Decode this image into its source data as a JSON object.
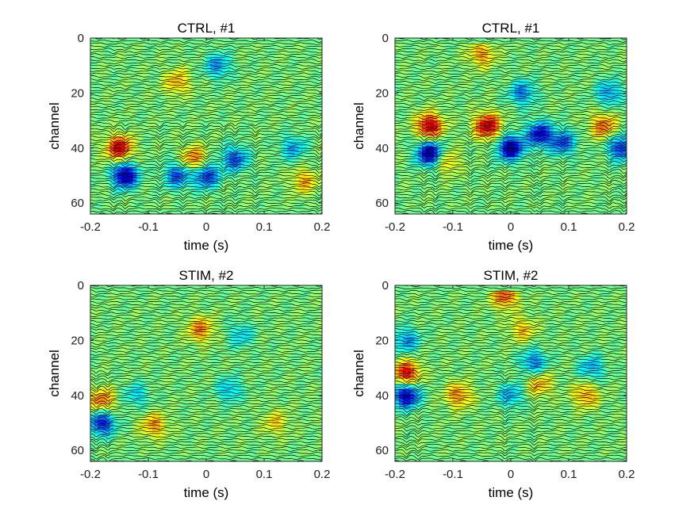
{
  "chart_data": [
    {
      "type": "heatmap",
      "title": "CTRL, #1",
      "xlabel": "time (s)",
      "ylabel": "channel",
      "xlim": [
        -0.2,
        0.2
      ],
      "ylim": [
        0,
        64
      ],
      "y_reversed": true,
      "xticks": [
        -0.2,
        -0.1,
        0,
        0.1,
        0.2
      ],
      "xtick_labels": [
        "-0.2",
        "-0.1",
        "0",
        "0.1",
        "0.2"
      ],
      "yticks": [
        0,
        20,
        40,
        60
      ],
      "ytick_labels": [
        "0",
        "20",
        "40",
        "60"
      ],
      "colormap": "jet",
      "trace_color": "#000000",
      "hotspots": [
        {
          "t": -0.15,
          "ch": 40,
          "v": 0.85
        },
        {
          "t": -0.14,
          "ch": 50,
          "v": -0.95
        },
        {
          "t": -0.02,
          "ch": 44,
          "v": 0.55
        },
        {
          "t": 0.0,
          "ch": 50,
          "v": -0.7
        },
        {
          "t": -0.05,
          "ch": 50,
          "v": -0.6
        },
        {
          "t": 0.05,
          "ch": 44,
          "v": -0.6
        },
        {
          "t": 0.02,
          "ch": 10,
          "v": -0.45
        },
        {
          "t": -0.05,
          "ch": 16,
          "v": 0.4
        },
        {
          "t": 0.15,
          "ch": 40,
          "v": -0.4
        },
        {
          "t": 0.17,
          "ch": 52,
          "v": 0.4
        }
      ],
      "spikes": [
        -0.16,
        -0.14,
        -0.08,
        -0.04,
        0.0,
        0.03,
        0.05,
        0.085,
        0.195
      ]
    },
    {
      "type": "heatmap",
      "title": "CTRL, #1",
      "xlabel": "time (s)",
      "ylabel": "channel",
      "xlim": [
        -0.2,
        0.2
      ],
      "ylim": [
        0,
        64
      ],
      "y_reversed": true,
      "xticks": [
        -0.2,
        -0.1,
        0,
        0.1,
        0.2
      ],
      "xtick_labels": [
        "-0.2",
        "-0.1",
        "0",
        "0.1",
        "0.2"
      ],
      "yticks": [
        0,
        20,
        40,
        60
      ],
      "ytick_labels": [
        "0",
        "20",
        "40",
        "60"
      ],
      "colormap": "jet",
      "trace_color": "#000000",
      "hotspots": [
        {
          "t": -0.14,
          "ch": 32,
          "v": 0.9
        },
        {
          "t": -0.14,
          "ch": 42,
          "v": -0.95
        },
        {
          "t": -0.04,
          "ch": 32,
          "v": 0.9
        },
        {
          "t": 0.0,
          "ch": 40,
          "v": -0.95
        },
        {
          "t": 0.05,
          "ch": 35,
          "v": -0.8
        },
        {
          "t": 0.09,
          "ch": 38,
          "v": -0.6
        },
        {
          "t": -0.05,
          "ch": 6,
          "v": 0.45
        },
        {
          "t": 0.02,
          "ch": 20,
          "v": -0.5
        },
        {
          "t": 0.16,
          "ch": 32,
          "v": 0.55
        },
        {
          "t": 0.19,
          "ch": 40,
          "v": -0.7
        },
        {
          "t": 0.17,
          "ch": 20,
          "v": -0.45
        },
        {
          "t": -0.11,
          "ch": 45,
          "v": 0.35
        }
      ],
      "spikes": [
        -0.15,
        -0.13,
        -0.07,
        -0.04,
        -0.01,
        0.04,
        0.05,
        0.09,
        0.17,
        0.195
      ]
    },
    {
      "type": "heatmap",
      "title": "STIM, #2",
      "xlabel": "time (s)",
      "ylabel": "channel",
      "xlim": [
        -0.2,
        0.2
      ],
      "ylim": [
        0,
        64
      ],
      "y_reversed": true,
      "xticks": [
        -0.2,
        -0.1,
        0,
        0.1,
        0.2
      ],
      "xtick_labels": [
        "-0.2",
        "-0.1",
        "0",
        "0.1",
        "0.2"
      ],
      "yticks": [
        0,
        20,
        40,
        60
      ],
      "ytick_labels": [
        "0",
        "20",
        "40",
        "60"
      ],
      "colormap": "jet",
      "trace_color": "#000000",
      "hotspots": [
        {
          "t": -0.18,
          "ch": 42,
          "v": 0.55
        },
        {
          "t": -0.18,
          "ch": 50,
          "v": -0.75
        },
        {
          "t": -0.09,
          "ch": 51,
          "v": 0.45
        },
        {
          "t": -0.01,
          "ch": 16,
          "v": 0.5
        },
        {
          "t": 0.04,
          "ch": 38,
          "v": -0.35
        },
        {
          "t": 0.12,
          "ch": 50,
          "v": 0.3
        },
        {
          "t": 0.06,
          "ch": 18,
          "v": -0.3
        },
        {
          "t": -0.12,
          "ch": 40,
          "v": -0.3
        }
      ],
      "spikes": [
        -0.19,
        -0.17
      ]
    },
    {
      "type": "heatmap",
      "title": "STIM, #2",
      "xlabel": "time (s)",
      "ylabel": "channel",
      "xlim": [
        -0.2,
        0.2
      ],
      "ylim": [
        0,
        64
      ],
      "y_reversed": true,
      "xticks": [
        -0.2,
        -0.1,
        0,
        0.1,
        0.2
      ],
      "xtick_labels": [
        "-0.2",
        "-0.1",
        "0",
        "0.1",
        "0.2"
      ],
      "yticks": [
        0,
        20,
        40,
        60
      ],
      "ytick_labels": [
        "0",
        "20",
        "40",
        "60"
      ],
      "colormap": "jet",
      "trace_color": "#000000",
      "hotspots": [
        {
          "t": -0.18,
          "ch": 32,
          "v": 0.8
        },
        {
          "t": -0.18,
          "ch": 40,
          "v": -0.9
        },
        {
          "t": -0.18,
          "ch": 20,
          "v": -0.45
        },
        {
          "t": -0.09,
          "ch": 40,
          "v": 0.5
        },
        {
          "t": -0.01,
          "ch": 4,
          "v": 0.6
        },
        {
          "t": 0.04,
          "ch": 28,
          "v": -0.5
        },
        {
          "t": 0.0,
          "ch": 40,
          "v": -0.4
        },
        {
          "t": 0.14,
          "ch": 30,
          "v": -0.4
        },
        {
          "t": 0.13,
          "ch": 40,
          "v": 0.45
        },
        {
          "t": 0.05,
          "ch": 36,
          "v": 0.4
        },
        {
          "t": 0.02,
          "ch": 16,
          "v": 0.35
        }
      ],
      "spikes": [
        -0.18,
        -0.16,
        -0.01,
        0.04
      ]
    }
  ]
}
